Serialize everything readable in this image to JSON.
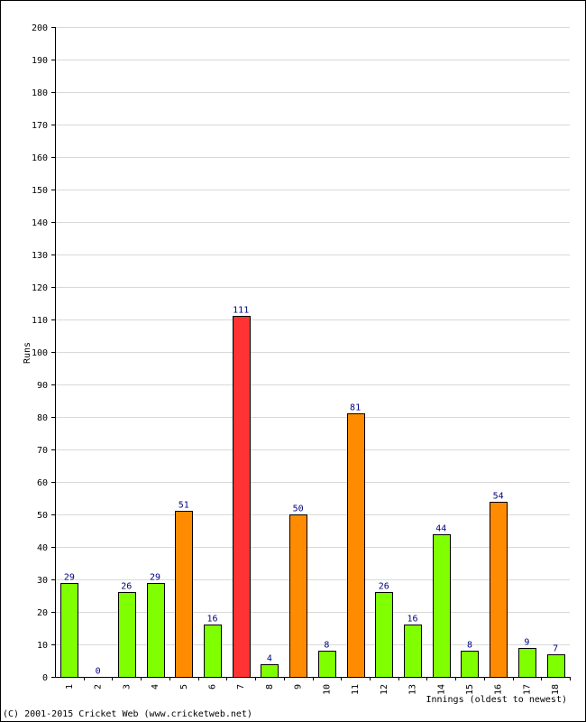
{
  "chart_data": {
    "type": "bar",
    "title": "",
    "xlabel": "Innings (oldest to newest)",
    "ylabel": "Runs",
    "ylim": [
      0,
      200
    ],
    "ytick_step": 10,
    "grid": true,
    "categories": [
      "1",
      "2",
      "3",
      "4",
      "5",
      "6",
      "7",
      "8",
      "9",
      "10",
      "11",
      "12",
      "13",
      "14",
      "15",
      "16",
      "17",
      "18"
    ],
    "values": [
      29,
      0,
      26,
      29,
      51,
      16,
      111,
      4,
      50,
      8,
      81,
      26,
      16,
      44,
      8,
      54,
      9,
      7
    ],
    "color_rules": {
      "below_50": "#80ff00",
      "50_to_99": "#ff8c00",
      "100_plus": "#ff3333"
    },
    "label_color": "#000080",
    "gridline_color": "#d9d9d9"
  },
  "footer": {
    "text": "(C) 2001-2015 Cricket Web (www.cricketweb.net)"
  }
}
